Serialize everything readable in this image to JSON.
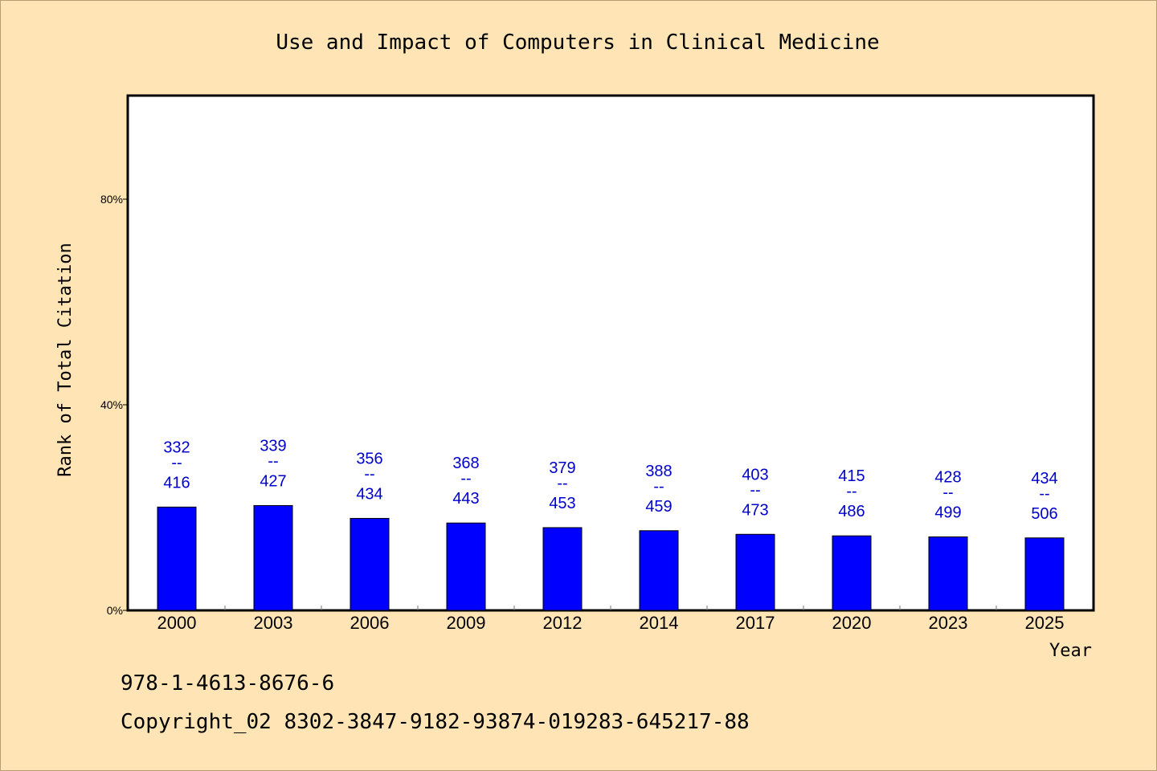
{
  "chart_data": {
    "type": "bar",
    "title": "Use and Impact of Computers in Clinical Medicine",
    "xlabel": "Year",
    "ylabel": "Rank of Total Citation",
    "categories": [
      "2000",
      "2003",
      "2006",
      "2009",
      "2012",
      "2014",
      "2017",
      "2020",
      "2023",
      "2025"
    ],
    "values": [
      20.1,
      20.4,
      17.9,
      17.0,
      16.1,
      15.5,
      14.8,
      14.5,
      14.3,
      14.1
    ],
    "value_unit": "%",
    "annotations": [
      {
        "top": "332",
        "sep": "--",
        "bottom": "416"
      },
      {
        "top": "339",
        "sep": "--",
        "bottom": "427"
      },
      {
        "top": "356",
        "sep": "--",
        "bottom": "434"
      },
      {
        "top": "368",
        "sep": "--",
        "bottom": "443"
      },
      {
        "top": "379",
        "sep": "--",
        "bottom": "453"
      },
      {
        "top": "388",
        "sep": "--",
        "bottom": "459"
      },
      {
        "top": "403",
        "sep": "--",
        "bottom": "473"
      },
      {
        "top": "415",
        "sep": "--",
        "bottom": "486"
      },
      {
        "top": "428",
        "sep": "--",
        "bottom": "499"
      },
      {
        "top": "434",
        "sep": "--",
        "bottom": "506"
      }
    ],
    "ylim": [
      0,
      100
    ],
    "yticks": [
      0,
      40,
      80
    ],
    "ytick_labels": [
      "0%",
      "40%",
      "80%"
    ],
    "grid": false,
    "legend": "none",
    "bar_color": "#0000ff",
    "label_color": "#0000cc",
    "background": "#ffe4b5",
    "plot_background": "#ffffff"
  },
  "footer": {
    "isbn": "978-1-4613-8676-6",
    "copyright": "Copyright_02 8302-3847-9182-93874-019283-645217-88"
  }
}
